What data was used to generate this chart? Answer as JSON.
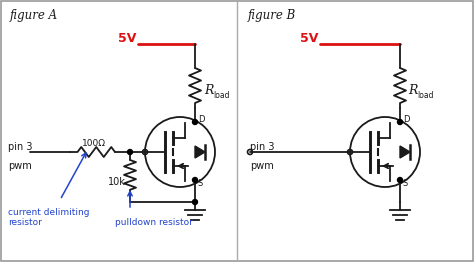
{
  "fig_width": 4.74,
  "fig_height": 2.62,
  "dpi": 100,
  "bg_color": "#ffffff",
  "line_color": "#1a1a1a",
  "red_color": "#dd1111",
  "blue_color": "#2244cc",
  "figure_A_label": "figure A",
  "figure_B_label": "figure B",
  "label_5V": "5V",
  "label_Rload": "R",
  "label_Rload_sub": "load",
  "label_pin3_A": "pin 3",
  "label_pwm_A": "pwm",
  "label_100ohm": "100Ω",
  "label_10k": "10k",
  "label_pin3_B": "pin 3",
  "label_pwm_B": "pwm",
  "annotation1": "current delimiting\nresistor",
  "annotation2": "pulldown resistor",
  "xlim": [
    0,
    474
  ],
  "ylim": [
    0,
    262
  ]
}
